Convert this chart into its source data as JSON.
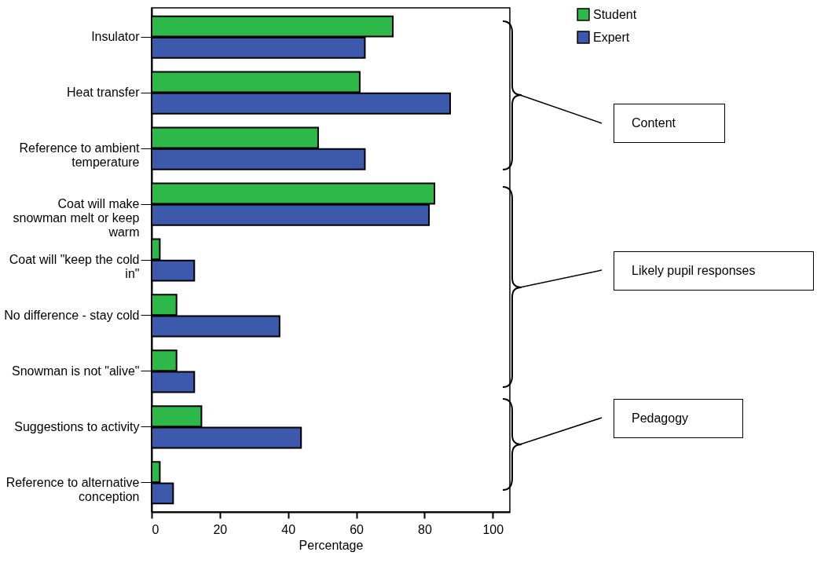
{
  "chart_data": {
    "type": "bar",
    "orientation": "horizontal",
    "xlabel": "Percentage",
    "categories": [
      "Insulator",
      "Heat transfer",
      "Reference to ambient temperature",
      "Coat will make snowman melt or keep warm",
      "Coat will \"keep the cold in\"",
      "No difference - stay cold",
      "Snowman is not \"alive\"",
      "Suggestions to activity",
      "Reference to alternative conception"
    ],
    "series": [
      {
        "name": "Student",
        "color": "#2eb84a",
        "values": [
          70.7,
          61.0,
          48.8,
          82.9,
          2.4,
          7.3,
          7.3,
          14.6,
          2.4
        ]
      },
      {
        "name": "Expert",
        "color": "#3d59ab",
        "values": [
          62.5,
          87.5,
          62.5,
          81.3,
          12.5,
          37.5,
          12.5,
          43.8,
          6.3
        ]
      }
    ],
    "xlim": [
      0,
      105
    ],
    "xticks": [
      0,
      20,
      40,
      60,
      80,
      100
    ],
    "grid": false,
    "legend": "top right",
    "annotations": [
      "Content",
      "Likely pupil responses",
      "Pedagogy"
    ]
  }
}
